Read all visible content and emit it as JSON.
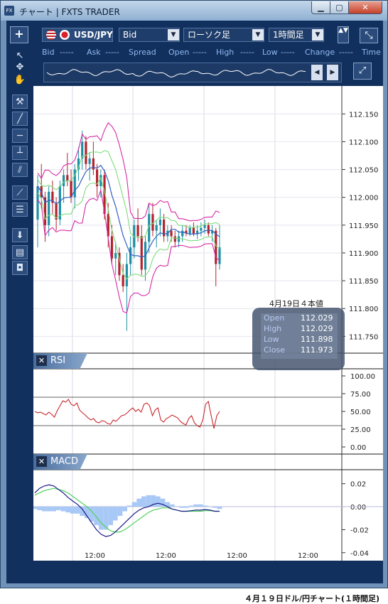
{
  "window": {
    "title": "チャート | FXTS TRADER",
    "app_icon": "FX",
    "min": "▁",
    "max": "▢",
    "close": "✕"
  },
  "toolbar": {
    "add": "+",
    "pair": "USD/JPY",
    "price_type": "Bid",
    "chart_type": "ローソク足",
    "period": "1時間足",
    "dropdown_arrow": "▼",
    "side_scroll": "▲▼",
    "expand": "⤡"
  },
  "quote": {
    "bid_label": "Bid",
    "bid_value": "-----",
    "ask_label": "Ask",
    "ask_value": "-----",
    "spread_label": "Spread",
    "open_label": "Open",
    "open_value": "-----",
    "high_label": "High",
    "high_value": "-----",
    "low_label": "Low",
    "low_value": "-----",
    "change_label": "Change",
    "change_value": "-----",
    "time_label": "Time"
  },
  "spark": {
    "prev": "◀",
    "next": "▶",
    "collapse": "⤢"
  },
  "tools": [
    {
      "name": "cursor-arrow-icon",
      "glyph": "↖"
    },
    {
      "name": "cross-cursor-icon",
      "glyph": "✥"
    },
    {
      "name": "hand-icon",
      "glyph": "✋"
    },
    {
      "name": "hammer-icon",
      "glyph": "⚒"
    },
    {
      "name": "trendline-icon",
      "glyph": "╱"
    },
    {
      "name": "horizontal-line-icon",
      "glyph": "─"
    },
    {
      "name": "vertical-line-icon",
      "glyph": "┴"
    },
    {
      "name": "channel-icon",
      "glyph": "⫽"
    },
    {
      "name": "fan-icon",
      "glyph": "⟋"
    },
    {
      "name": "fibonacci-icon",
      "glyph": "☰"
    },
    {
      "name": "down-arrow-icon",
      "glyph": "⬇"
    },
    {
      "name": "list-icon",
      "glyph": "▤"
    },
    {
      "name": "camera-icon",
      "glyph": "◘"
    }
  ],
  "panels": {
    "rsi_label": "RSI",
    "macd_label": "MACD",
    "close_glyph": "✕"
  },
  "ohlc": {
    "label": "4月19日４本値",
    "open_label": "Open",
    "open_value": "112.029",
    "high_label": "High",
    "high_value": "112.029",
    "low_label": "Low",
    "low_value": "111.898",
    "close_label": "Close",
    "close_value": "111.973"
  },
  "caption": "４月１９日ドル/円チャート(１時間足)",
  "colors": {
    "up": "#1f8fa6",
    "down": "#b3222e",
    "bb_outer": "#d62aa6",
    "bb_inner": "#7cdc7c",
    "ma": "#2f5fc0",
    "rsi": "#c8282e",
    "macd": "#1b1b86",
    "signal": "#4fd25f",
    "hist": "#a8c8f5"
  },
  "chart_data": [
    {
      "type": "candlestick",
      "y_ticks": [
        "112.150",
        "112.100",
        "112.050",
        "112.000",
        "111.950",
        "111.900",
        "111.850",
        "111.800",
        "111.750"
      ],
      "ylim": [
        111.73,
        112.19
      ],
      "x_ticks": [
        "12:00",
        "12:00",
        "12:00",
        "12:00"
      ],
      "candles": [
        [
          111.96,
          112.04,
          111.91,
          112.02
        ],
        [
          112.02,
          112.06,
          111.98,
          112.0
        ],
        [
          112.0,
          112.01,
          111.92,
          111.95
        ],
        [
          111.95,
          112.02,
          111.93,
          112.01
        ],
        [
          112.01,
          112.03,
          111.97,
          111.99
        ],
        [
          111.99,
          112.0,
          111.94,
          111.96
        ],
        [
          111.96,
          112.03,
          111.95,
          112.02
        ],
        [
          112.02,
          112.05,
          111.99,
          112.04
        ],
        [
          112.04,
          112.08,
          112.02,
          112.03
        ],
        [
          112.03,
          112.05,
          111.99,
          112.0
        ],
        [
          112.0,
          112.06,
          111.98,
          112.05
        ],
        [
          112.05,
          112.09,
          112.03,
          112.07
        ],
        [
          112.07,
          112.12,
          112.05,
          112.1
        ],
        [
          112.1,
          112.11,
          112.05,
          112.06
        ],
        [
          112.06,
          112.08,
          112.03,
          112.07
        ],
        [
          112.07,
          112.1,
          112.04,
          112.05
        ],
        [
          112.05,
          112.06,
          112.0,
          112.02
        ],
        [
          112.02,
          112.05,
          112.0,
          112.04
        ],
        [
          112.04,
          112.05,
          111.96,
          111.97
        ],
        [
          111.97,
          111.99,
          111.91,
          111.93
        ],
        [
          111.93,
          111.95,
          111.88,
          111.89
        ],
        [
          111.89,
          111.92,
          111.86,
          111.9
        ],
        [
          111.9,
          111.91,
          111.85,
          111.86
        ],
        [
          111.86,
          111.88,
          111.83,
          111.84
        ],
        [
          111.84,
          111.9,
          111.76,
          111.88
        ],
        [
          111.88,
          111.93,
          111.86,
          111.91
        ],
        [
          111.91,
          111.96,
          111.89,
          111.95
        ],
        [
          111.95,
          111.98,
          111.92,
          111.93
        ],
        [
          111.93,
          111.95,
          111.86,
          111.87
        ],
        [
          111.87,
          111.93,
          111.85,
          111.92
        ],
        [
          111.92,
          111.99,
          111.9,
          111.97
        ],
        [
          111.97,
          111.99,
          111.93,
          111.94
        ],
        [
          111.94,
          111.96,
          111.91,
          111.95
        ],
        [
          111.95,
          111.98,
          111.93,
          111.96
        ],
        [
          111.96,
          111.97,
          111.92,
          111.93
        ],
        [
          111.93,
          111.95,
          111.92,
          111.94
        ],
        [
          111.94,
          111.95,
          111.92,
          111.93
        ],
        [
          111.93,
          111.94,
          111.91,
          111.92
        ],
        [
          111.92,
          111.94,
          111.91,
          111.93
        ],
        [
          111.93,
          111.95,
          111.92,
          111.94
        ],
        [
          111.94,
          111.95,
          111.93,
          111.935
        ],
        [
          111.935,
          111.95,
          111.93,
          111.945
        ],
        [
          111.945,
          111.955,
          111.93,
          111.935
        ],
        [
          111.935,
          111.95,
          111.925,
          111.94
        ],
        [
          111.94,
          111.955,
          111.93,
          111.945
        ],
        [
          111.945,
          111.96,
          111.935,
          111.95
        ],
        [
          111.95,
          111.955,
          111.93,
          111.935
        ],
        [
          111.935,
          111.95,
          111.92,
          111.94
        ],
        [
          111.94,
          111.945,
          111.84,
          111.88
        ],
        [
          111.88,
          111.95,
          111.87,
          111.91
        ]
      ]
    },
    {
      "type": "line",
      "title": "RSI",
      "y_ticks": [
        "100.00",
        "75.00",
        "50.00",
        "25.00",
        "0.00"
      ],
      "ylim": [
        0,
        100
      ],
      "levels": [
        70,
        30
      ],
      "values": [
        50,
        48,
        49,
        47,
        45,
        49,
        46,
        42,
        51,
        58,
        65,
        63,
        67,
        60,
        58,
        62,
        52,
        48,
        45,
        41,
        38,
        40,
        35,
        34,
        37,
        36,
        33,
        32,
        38,
        36,
        40,
        44,
        45,
        48,
        52,
        55,
        50,
        53,
        49,
        60,
        62,
        58,
        44,
        52,
        55,
        38,
        35,
        40,
        42,
        45,
        43,
        41,
        36,
        33,
        31,
        40,
        44,
        34,
        30,
        28,
        38,
        60,
        64,
        44,
        26,
        44,
        50
      ]
    },
    {
      "type": "line",
      "title": "MACD",
      "y_ticks": [
        "0.02",
        "0.00",
        "-0.02",
        "-0.04"
      ],
      "ylim": [
        -0.042,
        0.026
      ],
      "macd": [
        0.012,
        0.016,
        0.018,
        0.019,
        0.018,
        0.015,
        0.012,
        0.008,
        0.005,
        0.002,
        -0.002,
        -0.008,
        -0.014,
        -0.02,
        -0.024,
        -0.026,
        -0.025,
        -0.022,
        -0.018,
        -0.014,
        -0.01,
        -0.006,
        -0.003,
        -0.001,
        0.0,
        0.002,
        0.003,
        0.002,
        0.0,
        -0.002,
        -0.003,
        -0.004,
        -0.004,
        -0.0035,
        -0.003,
        -0.003,
        -0.0025,
        -0.003,
        -0.004,
        -0.004
      ],
      "signal": [
        0.01,
        0.012,
        0.014,
        0.015,
        0.016,
        0.015,
        0.014,
        0.012,
        0.009,
        0.006,
        0.003,
        0.0,
        -0.004,
        -0.009,
        -0.014,
        -0.018,
        -0.021,
        -0.022,
        -0.022,
        -0.02,
        -0.017,
        -0.014,
        -0.011,
        -0.008,
        -0.005,
        -0.003,
        -0.002,
        -0.001,
        -0.001,
        -0.002,
        -0.003,
        -0.004,
        -0.004,
        -0.004,
        -0.004,
        -0.004,
        -0.0035,
        -0.0035,
        -0.004,
        -0.004
      ],
      "histogram": [
        -0.002,
        -0.003,
        -0.004,
        -0.004,
        -0.004,
        -0.003,
        -0.004,
        -0.005,
        -0.006,
        -0.006,
        -0.008,
        -0.01,
        -0.013,
        -0.016,
        -0.02,
        -0.02,
        -0.016,
        -0.012,
        -0.008,
        -0.004,
        0.001,
        0.004,
        0.007,
        0.009,
        0.01,
        0.01,
        0.009,
        0.007,
        0.004,
        0.002,
        0.0,
        -0.001,
        -0.001,
        0.001,
        0.002,
        0.002,
        0.001,
        0.0,
        -0.001,
        -0.002
      ]
    }
  ]
}
